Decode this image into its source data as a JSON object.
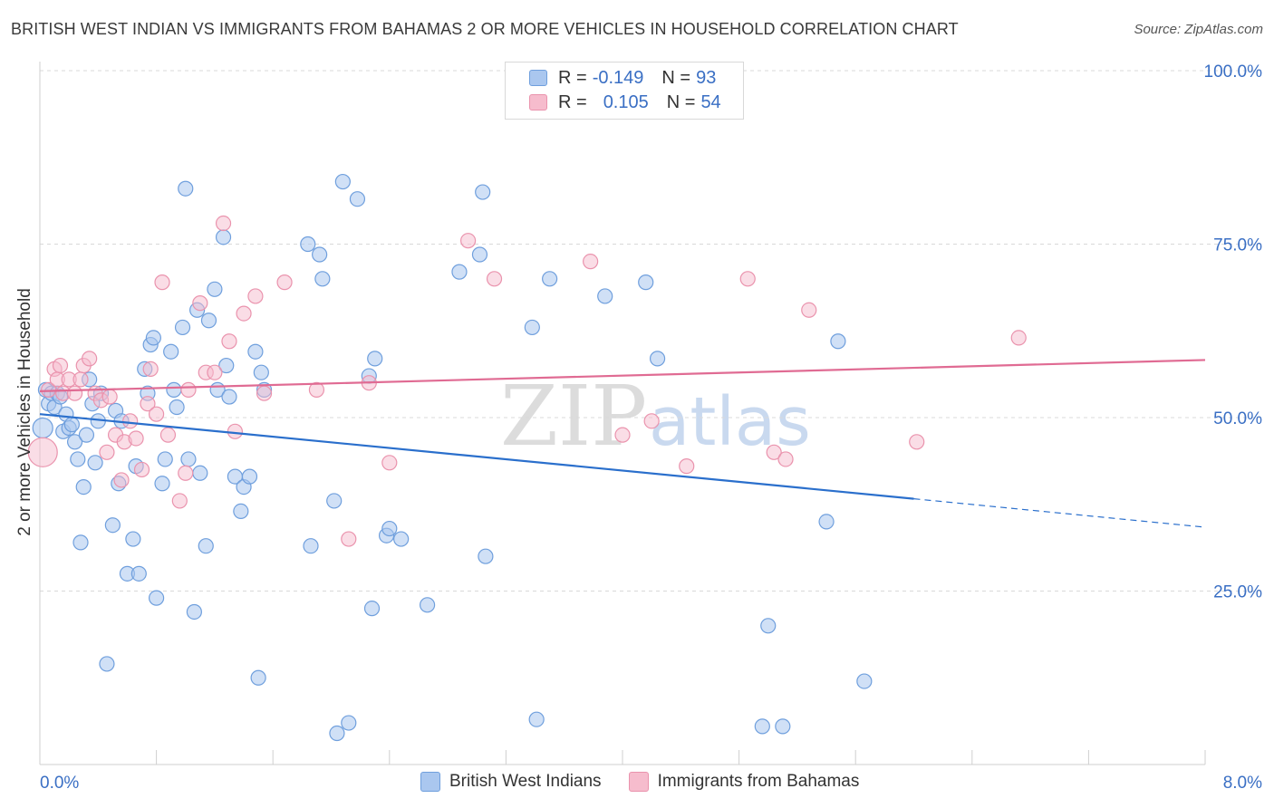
{
  "title": "BRITISH WEST INDIAN VS IMMIGRANTS FROM BAHAMAS 2 OR MORE VEHICLES IN HOUSEHOLD CORRELATION CHART",
  "source": "Source: ZipAtlas.com",
  "watermark": {
    "zip": "ZIP",
    "atlas": "atlas"
  },
  "colors": {
    "blue_fill": "#aac7ef",
    "blue_stroke": "#6f9fdd",
    "blue_line": "#2a6fcc",
    "pink_fill": "#f6bccd",
    "pink_stroke": "#ea93ad",
    "pink_line": "#e06b93",
    "axis_label": "#3a6fc4",
    "grid": "#d9d9d9"
  },
  "legend": {
    "rows": [
      {
        "r_label": "R =",
        "r_value": "-0.149",
        "n_label": "N =",
        "n_value": "93"
      },
      {
        "r_label": "R =",
        "r_value": "0.105",
        "n_label": "N =",
        "n_value": "54"
      }
    ]
  },
  "chart_data": {
    "type": "scatter",
    "title": "BRITISH WEST INDIAN VS IMMIGRANTS FROM BAHAMAS 2 OR MORE VEHICLES IN HOUSEHOLD CORRELATION CHART",
    "xlabel": "",
    "ylabel": "2 or more Vehicles in Household",
    "xlim": [
      0,
      8
    ],
    "ylim": [
      0,
      100
    ],
    "x_tick_labels": {
      "min": "0.0%",
      "max": "8.0%"
    },
    "y_ticks": [
      25,
      50,
      75,
      100
    ],
    "y_tick_labels": [
      "25.0%",
      "50.0%",
      "75.0%",
      "100.0%"
    ],
    "grid": true,
    "legend_position": "top-center",
    "series": [
      {
        "name": "British West Indians",
        "R": -0.149,
        "N": 93,
        "trend": {
          "x0": 0,
          "y0": 50.5,
          "x1": 6.0,
          "y1": 38.3,
          "dashed_to_x": 8.0,
          "dashed_to_y": 34.2
        },
        "points": [
          [
            0.02,
            48.5
          ],
          [
            0.04,
            54
          ],
          [
            0.06,
            52
          ],
          [
            0.08,
            53.5
          ],
          [
            0.1,
            51.5
          ],
          [
            0.12,
            53.5
          ],
          [
            0.14,
            53
          ],
          [
            0.16,
            48
          ],
          [
            0.18,
            50.5
          ],
          [
            0.2,
            48.5
          ],
          [
            0.22,
            49
          ],
          [
            0.24,
            46.5
          ],
          [
            0.26,
            44
          ],
          [
            0.28,
            32
          ],
          [
            0.3,
            40
          ],
          [
            0.32,
            47.5
          ],
          [
            0.34,
            55.5
          ],
          [
            0.36,
            52
          ],
          [
            0.38,
            43.5
          ],
          [
            0.4,
            49.5
          ],
          [
            0.42,
            53.5
          ],
          [
            0.46,
            14.5
          ],
          [
            0.5,
            34.5
          ],
          [
            0.52,
            51
          ],
          [
            0.54,
            40.5
          ],
          [
            0.56,
            49.5
          ],
          [
            0.6,
            27.5
          ],
          [
            0.64,
            32.5
          ],
          [
            0.66,
            43
          ],
          [
            0.68,
            27.5
          ],
          [
            0.72,
            57
          ],
          [
            0.74,
            53.5
          ],
          [
            0.76,
            60.5
          ],
          [
            0.78,
            61.5
          ],
          [
            0.8,
            24
          ],
          [
            0.84,
            40.5
          ],
          [
            0.86,
            44
          ],
          [
            0.9,
            59.5
          ],
          [
            0.92,
            54
          ],
          [
            0.94,
            51.5
          ],
          [
            0.98,
            63
          ],
          [
            1.0,
            83
          ],
          [
            1.02,
            44
          ],
          [
            1.06,
            22
          ],
          [
            1.08,
            65.5
          ],
          [
            1.1,
            42
          ],
          [
            1.14,
            31.5
          ],
          [
            1.16,
            64
          ],
          [
            1.2,
            68.5
          ],
          [
            1.22,
            54
          ],
          [
            1.26,
            76
          ],
          [
            1.28,
            57.5
          ],
          [
            1.3,
            53
          ],
          [
            1.34,
            41.5
          ],
          [
            1.38,
            36.5
          ],
          [
            1.4,
            40
          ],
          [
            1.44,
            41.5
          ],
          [
            1.48,
            59.5
          ],
          [
            1.5,
            12.5
          ],
          [
            1.52,
            56.5
          ],
          [
            1.54,
            54
          ],
          [
            1.84,
            75
          ],
          [
            1.86,
            31.5
          ],
          [
            1.92,
            73.5
          ],
          [
            1.94,
            70
          ],
          [
            2.02,
            38
          ],
          [
            2.04,
            4.5
          ],
          [
            2.08,
            84
          ],
          [
            2.12,
            6
          ],
          [
            2.18,
            81.5
          ],
          [
            2.26,
            56
          ],
          [
            2.28,
            22.5
          ],
          [
            2.3,
            58.5
          ],
          [
            2.38,
            33
          ],
          [
            2.4,
            34
          ],
          [
            2.48,
            32.5
          ],
          [
            2.66,
            23
          ],
          [
            2.88,
            71
          ],
          [
            3.02,
            73.5
          ],
          [
            3.04,
            82.5
          ],
          [
            3.06,
            30
          ],
          [
            3.38,
            63
          ],
          [
            3.41,
            6.5
          ],
          [
            3.5,
            70
          ],
          [
            3.88,
            67.5
          ],
          [
            4.16,
            69.5
          ],
          [
            4.24,
            58.5
          ],
          [
            4.96,
            5.5
          ],
          [
            5.0,
            20
          ],
          [
            5.1,
            5.5
          ],
          [
            5.4,
            35
          ],
          [
            5.48,
            61
          ],
          [
            5.66,
            12
          ]
        ]
      },
      {
        "name": "Immigrants from Bahamas",
        "R": 0.105,
        "N": 54,
        "trend": {
          "x0": 0,
          "y0": 53.8,
          "x1": 8.0,
          "y1": 58.3
        },
        "points": [
          [
            0.02,
            45
          ],
          [
            0.06,
            54
          ],
          [
            0.1,
            57
          ],
          [
            0.12,
            55.5
          ],
          [
            0.14,
            57.5
          ],
          [
            0.16,
            53.5
          ],
          [
            0.2,
            55.5
          ],
          [
            0.24,
            53.5
          ],
          [
            0.28,
            55.5
          ],
          [
            0.3,
            57.5
          ],
          [
            0.34,
            58.5
          ],
          [
            0.38,
            53.5
          ],
          [
            0.42,
            52.5
          ],
          [
            0.46,
            45
          ],
          [
            0.48,
            53
          ],
          [
            0.52,
            47.5
          ],
          [
            0.56,
            41
          ],
          [
            0.58,
            46.5
          ],
          [
            0.62,
            49.5
          ],
          [
            0.66,
            47
          ],
          [
            0.7,
            42.5
          ],
          [
            0.74,
            52
          ],
          [
            0.76,
            57
          ],
          [
            0.8,
            50.5
          ],
          [
            0.84,
            69.5
          ],
          [
            0.88,
            47.5
          ],
          [
            0.96,
            38
          ],
          [
            1.0,
            42
          ],
          [
            1.02,
            54
          ],
          [
            1.1,
            66.5
          ],
          [
            1.14,
            56.5
          ],
          [
            1.2,
            56.5
          ],
          [
            1.26,
            78
          ],
          [
            1.3,
            61
          ],
          [
            1.34,
            48
          ],
          [
            1.4,
            65
          ],
          [
            1.48,
            67.5
          ],
          [
            1.54,
            53.5
          ],
          [
            1.68,
            69.5
          ],
          [
            1.9,
            54
          ],
          [
            2.12,
            32.5
          ],
          [
            2.26,
            55
          ],
          [
            2.4,
            43.5
          ],
          [
            2.94,
            75.5
          ],
          [
            3.12,
            70
          ],
          [
            3.78,
            72.5
          ],
          [
            4.0,
            47.5
          ],
          [
            4.2,
            49.5
          ],
          [
            4.44,
            43
          ],
          [
            4.86,
            70
          ],
          [
            5.04,
            45
          ],
          [
            5.12,
            44
          ],
          [
            5.28,
            65.5
          ],
          [
            6.02,
            46.5
          ],
          [
            6.72,
            61.5
          ]
        ]
      }
    ]
  },
  "bottom_legend": [
    "British West Indians",
    "Immigrants from Bahamas"
  ]
}
